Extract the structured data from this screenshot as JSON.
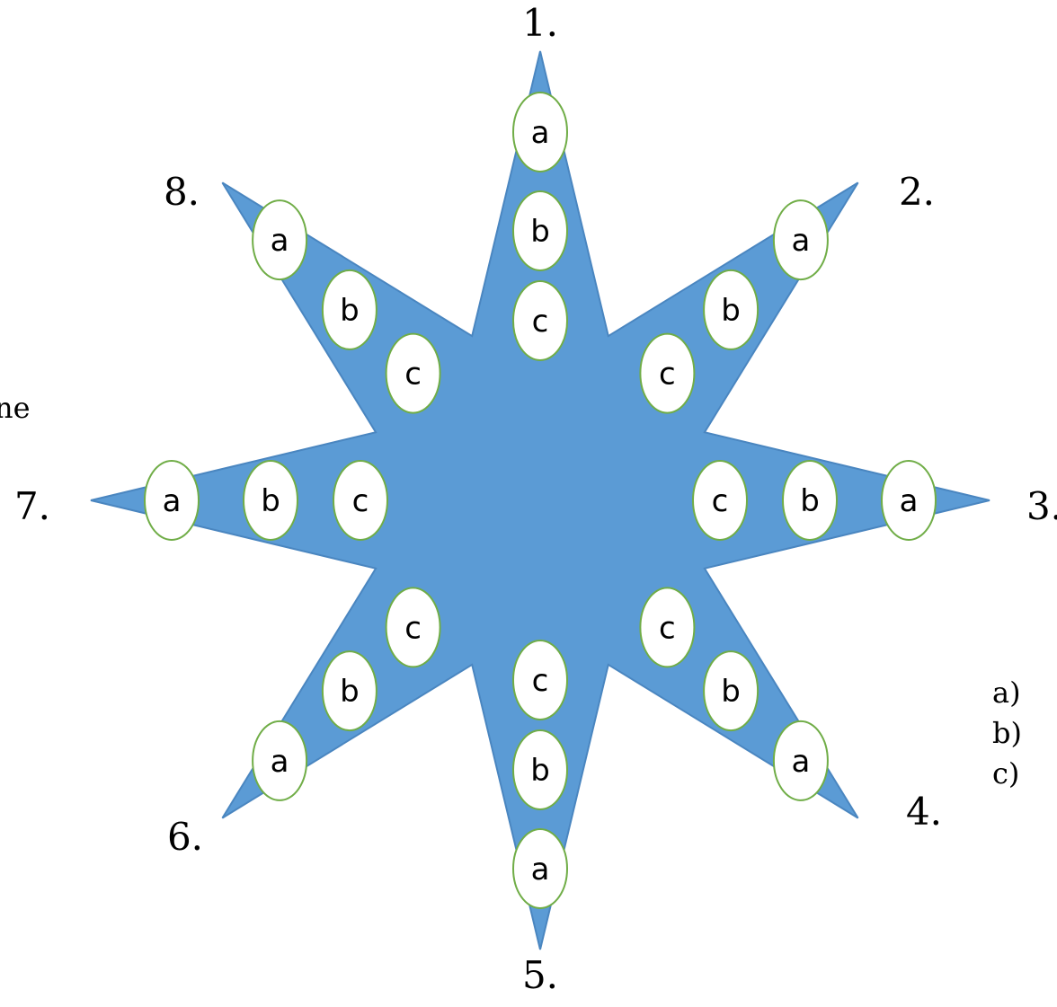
{
  "colors": {
    "star_fill": "#5b9bd5",
    "star_stroke": "#4a86c0",
    "node_fill": "#ffffff",
    "node_stroke": "#70ad47",
    "text": "#000000"
  },
  "star": {
    "points": 8,
    "rays": [
      {
        "number": "1.",
        "nodes": [
          "a",
          "b",
          "c"
        ]
      },
      {
        "number": "2.",
        "nodes": [
          "a",
          "b",
          "c"
        ]
      },
      {
        "number": "3.",
        "nodes": [
          "a",
          "b",
          "c"
        ]
      },
      {
        "number": "4.",
        "nodes": [
          "a",
          "b",
          "c"
        ]
      },
      {
        "number": "5.",
        "nodes": [
          "a",
          "b",
          "c"
        ]
      },
      {
        "number": "6.",
        "nodes": [
          "a",
          "b",
          "c"
        ]
      },
      {
        "number": "7.",
        "nodes": [
          "a",
          "b",
          "c"
        ]
      },
      {
        "number": "8.",
        "nodes": [
          "a",
          "b",
          "c"
        ]
      }
    ]
  },
  "left_text": "ne",
  "right_list": [
    "a)",
    "b)",
    "c)"
  ]
}
